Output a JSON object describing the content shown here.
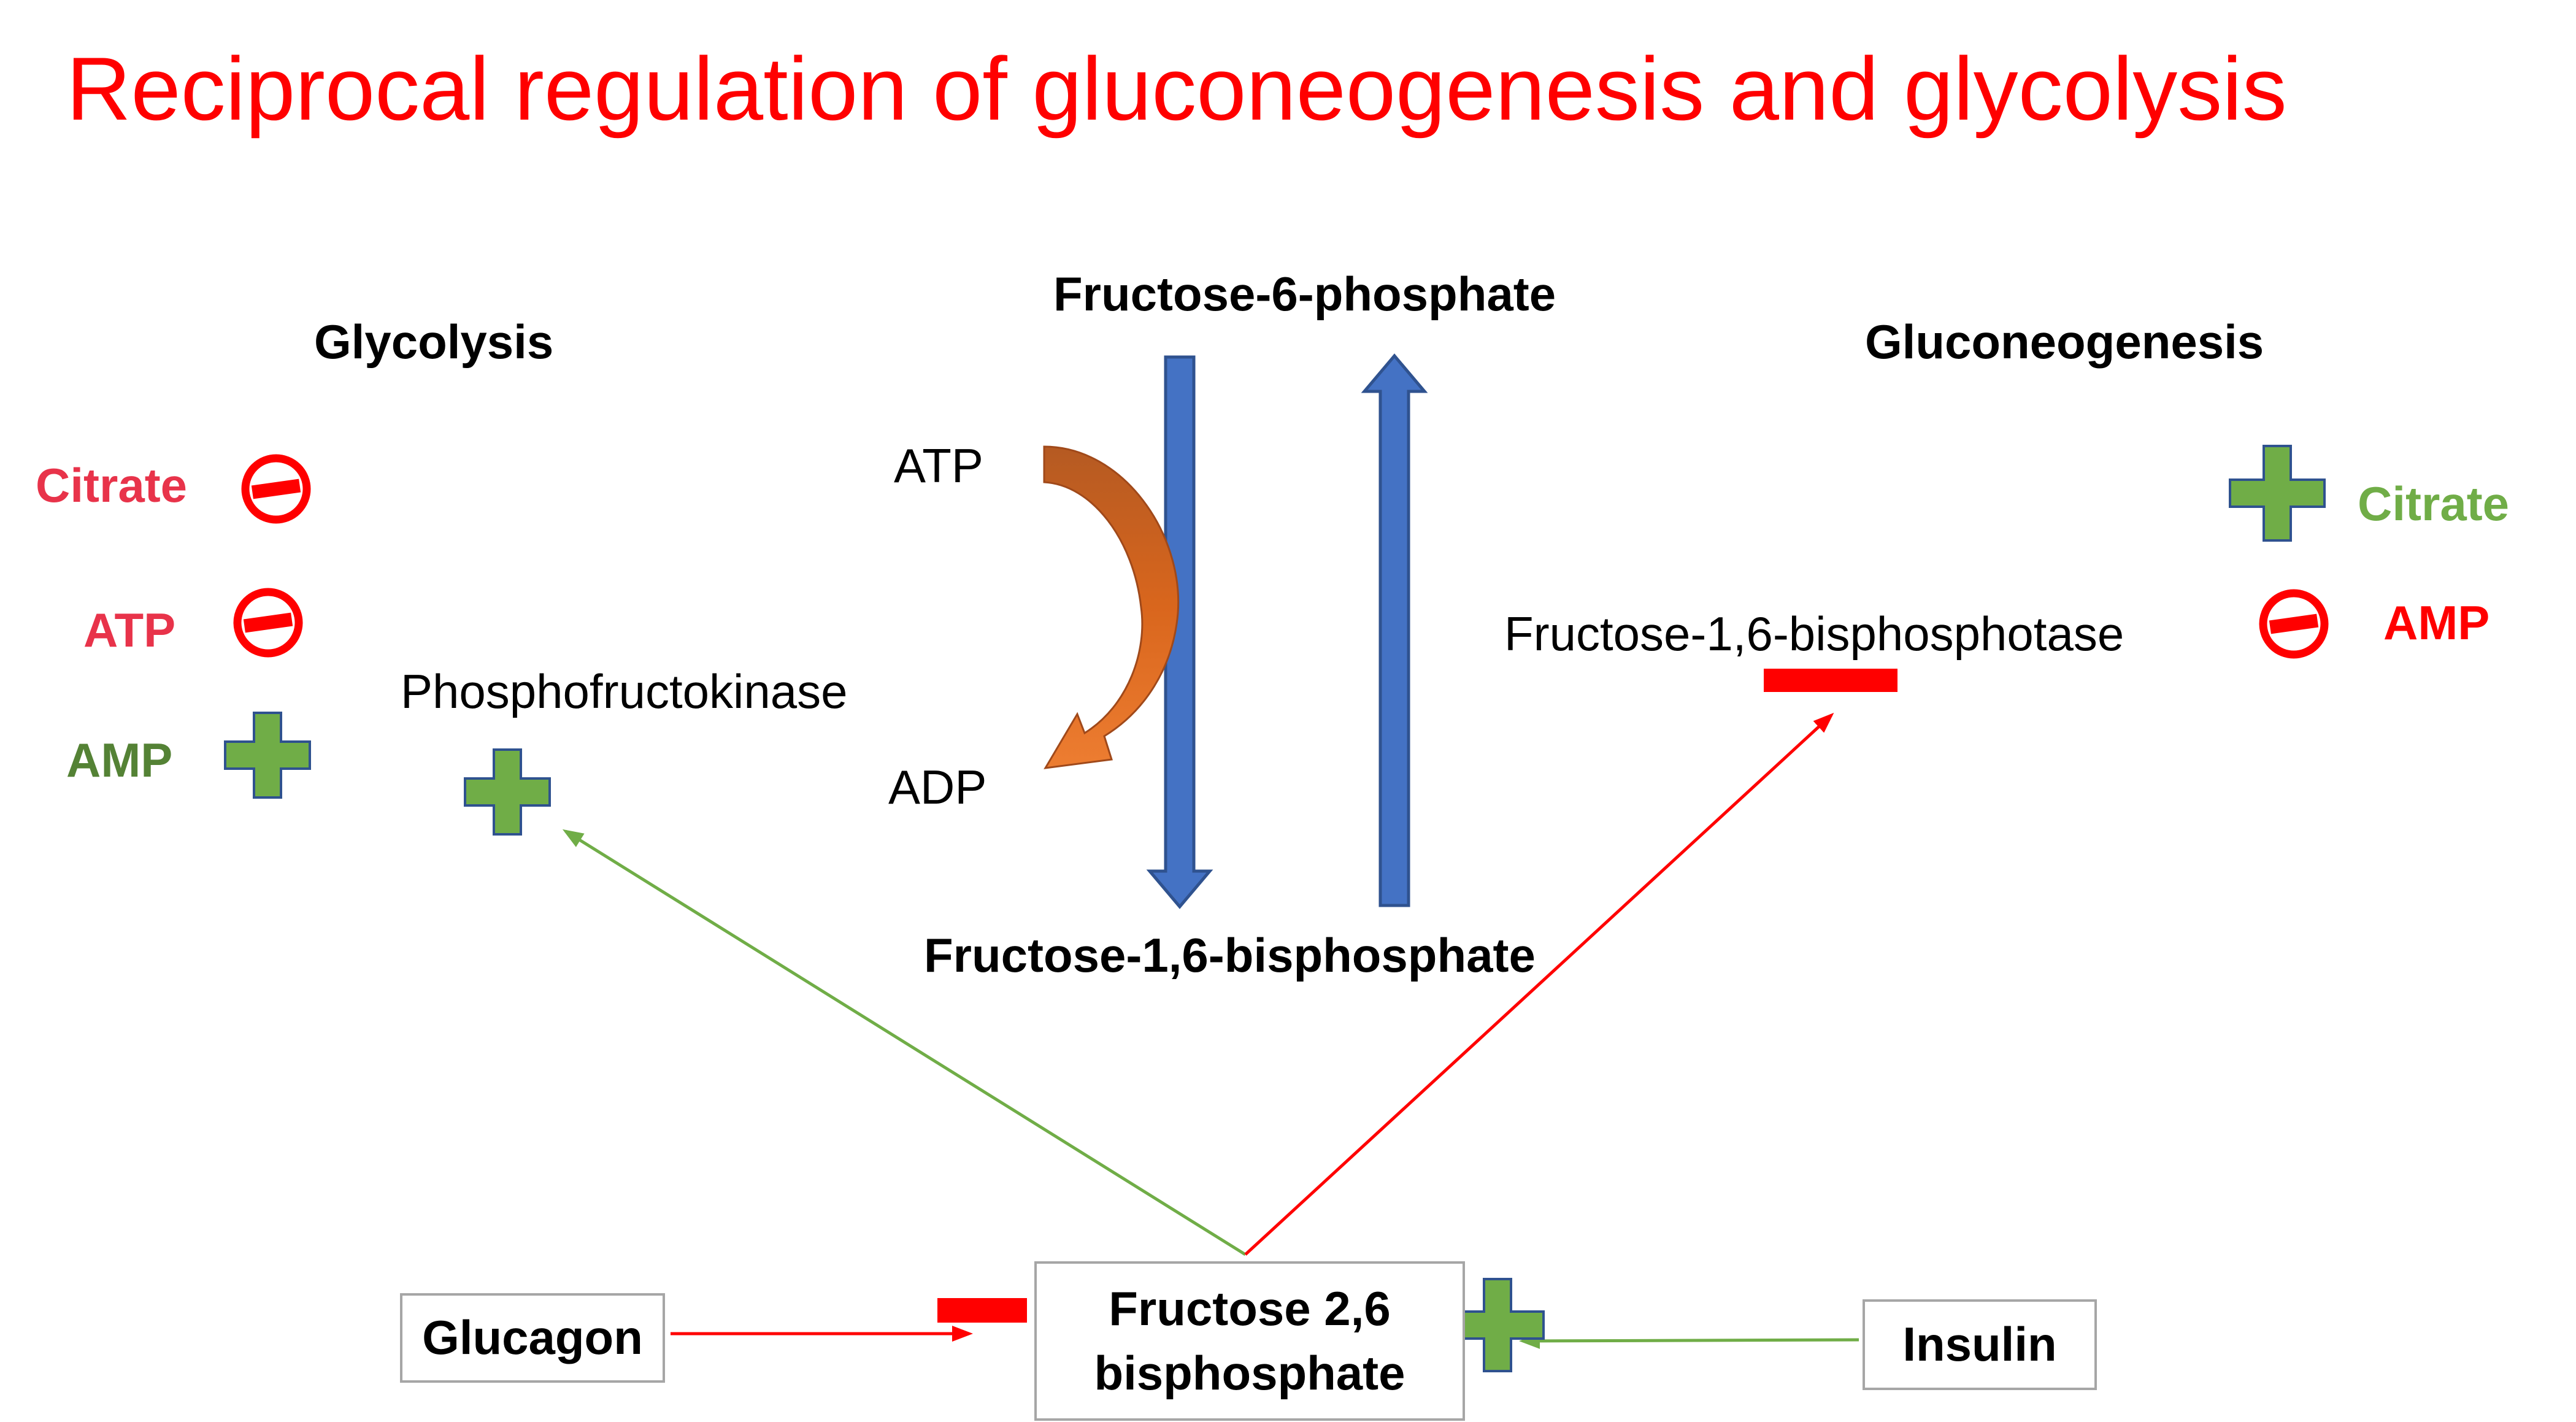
{
  "title": "Reciprocal regulation of gluconeogenesis and glycolysis",
  "pathways": {
    "glycolysis": "Glycolysis",
    "gluconeogenesis": "Gluconeogenesis"
  },
  "metabolites": {
    "top": "Fructose-6-phosphate",
    "bottom": "Fructose-1,6-bisphosphate",
    "atp": "ATP",
    "adp": "ADP"
  },
  "enzymes": {
    "glycolytic": "Phosphofructokinase",
    "gluconeogenic": "Fructose-1,6-bisphosphotase"
  },
  "glycolysis_regulators": [
    {
      "label": "Citrate",
      "effect": "inhibit",
      "color": "#e8334a"
    },
    {
      "label": "ATP",
      "effect": "inhibit",
      "color": "#e8334a"
    },
    {
      "label": "AMP",
      "effect": "activate",
      "color": "#548235"
    }
  ],
  "gluconeogenesis_regulators": [
    {
      "label": "Citrate",
      "effect": "activate",
      "color": "#70ad47"
    },
    {
      "label": "AMP",
      "effect": "inhibit",
      "color": "#ff0000"
    }
  ],
  "central": {
    "glucagon": "Glucagon",
    "f26bp": "Fructose 2,6\nbisphosphate",
    "insulin": "Insulin"
  },
  "colors": {
    "title": "#ff0000",
    "pathway_arrow": "#4472c4",
    "activation": "#70ad47",
    "inhibition": "#ff0000",
    "atp_arrow": "#c55a11"
  },
  "icons": {
    "inhibit": "no-entry-icon",
    "activate": "plus-icon"
  }
}
